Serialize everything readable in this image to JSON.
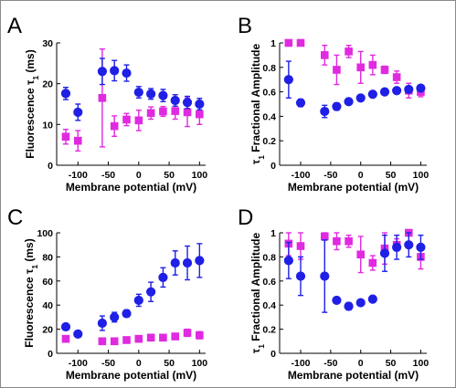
{
  "chart_data": [
    {
      "panel_label": "A",
      "type": "scatter",
      "xlabel": "Membrane potential (mV)",
      "ylabel": {
        "pre": "Fluorescence τ",
        "sub": "1",
        "post": " (ms)"
      },
      "xlim": [
        -135,
        110
      ],
      "ylim": [
        0,
        30
      ],
      "xticks": [
        -100,
        -50,
        0,
        50,
        100
      ],
      "yticks": [
        0,
        10,
        20,
        30
      ],
      "grid": false,
      "x": [
        -120,
        -100,
        -60,
        -40,
        -20,
        0,
        20,
        40,
        60,
        80,
        100
      ],
      "series": [
        {
          "marker": "circle",
          "color": "#1f1fe6",
          "values": [
            17.6,
            13.0,
            23.0,
            23.2,
            22.6,
            17.9,
            17.5,
            17.1,
            15.9,
            15.4,
            15.0
          ],
          "errors": [
            1.5,
            2.0,
            3.2,
            2.5,
            2.0,
            1.4,
            1.3,
            1.5,
            1.4,
            1.5,
            1.4
          ]
        },
        {
          "marker": "square",
          "color": "#e02ae0",
          "values": [
            7.0,
            6.0,
            16.5,
            9.6,
            11.2,
            11.0,
            12.8,
            13.2,
            13.3,
            13.0,
            12.5
          ],
          "errors": [
            1.8,
            2.5,
            12.0,
            2.5,
            1.5,
            2.5,
            1.5,
            1.2,
            2.0,
            3.5,
            2.5
          ]
        }
      ]
    },
    {
      "panel_label": "B",
      "type": "scatter",
      "xlabel": "Membrane potential (mV)",
      "ylabel": {
        "pre": "τ",
        "sub": "1",
        "post": " Fractional Amplitude"
      },
      "xlim": [
        -135,
        110
      ],
      "ylim": [
        0,
        1
      ],
      "xticks": [
        -100,
        -50,
        0,
        50,
        100
      ],
      "yticks": [
        0,
        0.2,
        0.4,
        0.6,
        0.8,
        1
      ],
      "grid": false,
      "x": [
        -120,
        -100,
        -60,
        -40,
        -20,
        0,
        20,
        40,
        60,
        80,
        100
      ],
      "series": [
        {
          "marker": "circle",
          "color": "#1f1fe6",
          "values": [
            0.7,
            0.51,
            0.44,
            0.48,
            0.52,
            0.55,
            0.58,
            0.6,
            0.61,
            0.62,
            0.63
          ],
          "errors": [
            0.15,
            0.03,
            0.05,
            0.03,
            0.02,
            0.02,
            0.02,
            0.02,
            0.02,
            0.02,
            0.02
          ]
        },
        {
          "marker": "square",
          "color": "#e02ae0",
          "values": [
            1.0,
            1.0,
            0.9,
            0.78,
            0.93,
            0.8,
            0.82,
            0.78,
            0.72,
            0.61,
            0.6
          ],
          "errors": [
            0,
            0,
            0.08,
            0.12,
            0.05,
            0.13,
            0.08,
            0.03,
            0.05,
            0.06,
            0.04
          ]
        }
      ]
    },
    {
      "panel_label": "C",
      "type": "scatter",
      "xlabel": "Membrane potential (mV)",
      "ylabel": {
        "pre": "Fluorescence τ",
        "sub": "1",
        "post": " (ms)"
      },
      "xlim": [
        -135,
        110
      ],
      "ylim": [
        0,
        100
      ],
      "xticks": [
        -100,
        -50,
        0,
        50,
        100
      ],
      "yticks": [
        0,
        20,
        40,
        60,
        80,
        100
      ],
      "grid": false,
      "x": [
        -120,
        -100,
        -60,
        -40,
        -20,
        0,
        20,
        40,
        60,
        80,
        100
      ],
      "series": [
        {
          "marker": "circle",
          "color": "#1f1fe6",
          "values": [
            22,
            16,
            25,
            30,
            33,
            44,
            51,
            63,
            75,
            75,
            77
          ],
          "errors": [
            2.5,
            2,
            6,
            4,
            3,
            5,
            8,
            8,
            10,
            14,
            14
          ]
        },
        {
          "marker": "square",
          "color": "#e02ae0",
          "values": [
            12,
            null,
            10,
            10,
            11,
            12,
            13,
            13,
            14,
            17,
            15
          ],
          "errors": [
            2,
            null,
            1.5,
            1.5,
            1.5,
            1.5,
            1.5,
            1.5,
            2,
            3,
            3
          ]
        }
      ]
    },
    {
      "panel_label": "D",
      "type": "scatter",
      "xlabel": "Membrane potential (mV)",
      "ylabel": {
        "pre": "τ",
        "sub": "1",
        "post": " Fractional Amplitude"
      },
      "xlim": [
        -135,
        110
      ],
      "ylim": [
        0,
        1
      ],
      "xticks": [
        -100,
        -50,
        0,
        50,
        100
      ],
      "yticks": [
        0,
        0.2,
        0.4,
        0.6,
        0.8,
        1
      ],
      "grid": false,
      "x": [
        -120,
        -100,
        -60,
        -40,
        -20,
        0,
        20,
        40,
        60,
        80,
        100
      ],
      "series": [
        {
          "marker": "circle",
          "color": "#1f1fe6",
          "values": [
            0.77,
            0.64,
            0.64,
            0.44,
            0.39,
            0.42,
            0.45,
            0.83,
            0.88,
            0.9,
            0.88
          ],
          "errors": [
            0.15,
            0.16,
            0.3,
            0.02,
            0.03,
            0.02,
            0.02,
            0.15,
            0.1,
            0.1,
            0.1
          ]
        },
        {
          "marker": "square",
          "color": "#e02ae0",
          "values": [
            0.91,
            0.89,
            0.97,
            0.93,
            0.93,
            0.82,
            0.75,
            0.87,
            0.9,
            1.0,
            0.8
          ],
          "errors": [
            0.1,
            0.11,
            0.03,
            0.07,
            0.05,
            0.15,
            0.06,
            0.13,
            0.05,
            0,
            0.1
          ]
        }
      ]
    }
  ]
}
